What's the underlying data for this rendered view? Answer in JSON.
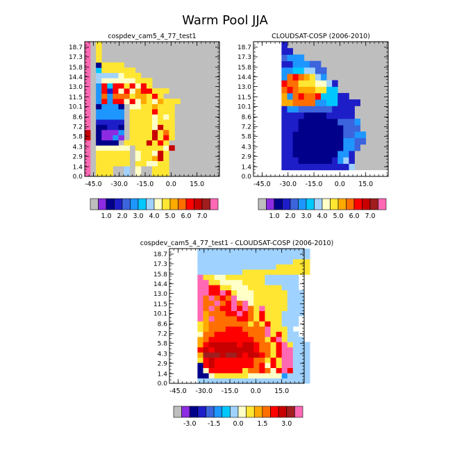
{
  "figure": {
    "title": "Warm Pool JJA"
  },
  "colors": {
    "abs": [
      "#bebebe",
      "#8c2be2",
      "#00008b",
      "#1e1ec8",
      "#3c64dc",
      "#1e96ff",
      "#00c8ff",
      "#a0d2ff",
      "#ffffc8",
      "#ffe632",
      "#ffaa00",
      "#ff6e00",
      "#ff0000",
      "#c80000",
      "#a01e1e",
      "#ff69b4"
    ],
    "diff": [
      "#bebebe",
      "#8c2be2",
      "#00008b",
      "#1e1ec8",
      "#3c64dc",
      "#1e96ff",
      "#00c8ff",
      "#a0d2ff",
      "#ffffc8",
      "#ffe632",
      "#ffaa00",
      "#ff6e00",
      "#ff0000",
      "#c80000",
      "#a01e1e",
      "#ff69b4"
    ]
  },
  "chart_data": [
    {
      "type": "heatmap",
      "title": "cospdev_cam5_4_77_test1",
      "xlabel": "",
      "ylabel": "",
      "xticks": [
        "-45.0",
        "-30.0",
        "-15.0",
        "0.0",
        "15.0"
      ],
      "yticks": [
        "0.0",
        "1.4",
        "2.9",
        "4.3",
        "5.8",
        "7.2",
        "8.6",
        "10.1",
        "11.5",
        "13.0",
        "14.4",
        "15.8",
        "17.3",
        "18.7"
      ],
      "colorbar_labels": [
        "1.0",
        "2.0",
        "3.0",
        "4.0",
        "5.0",
        "6.0",
        "7.0"
      ],
      "rows_bottom_to_top": [
        "f.999..7.8..999",
        "f.999..7.8..999",
        "f.999999.998899",
        "f.999999.899ad9",
        "f.999999.8998d9",
        "f.888888.999998d",
        "f.2222.9999d9c9",
        "d.21151.9999d9c9",
        "d.21115.9999d9b9",
        "f.22332.99998d99",
        "f.33333.99998999",
        "f.55555.99998989",
        "f.55555.9999c999",
        "f.25552.8899a999",
        "f.5c5cc8c8a98a999",
        "f.5b5bbb9aa9c9",
        "f.5c3c8c8acc999",
        "f.5c6cc9c8c9",
        "f.7888888999",
        "f.77778999",
        "f.6999999",
        "f.29999",
        "f.9",
        "f.9",
        "f.9",
        "f.9"
      ]
    },
    {
      "type": "heatmap",
      "title": "CLOUDSAT-COSP (2006-2010)",
      "xlabel": "",
      "ylabel": "",
      "xticks": [
        "-45.0",
        "-30.0",
        "-15.0",
        "0.0",
        "15.0"
      ],
      "yticks": [
        "0.0",
        "1.4",
        "2.9",
        "4.3",
        "5.8",
        "7.2",
        "8.6",
        "10.1",
        "11.5",
        "13.0",
        "14.4",
        "15.8",
        "17.3",
        "18.7"
      ],
      "colorbar_labels": [
        "1.0",
        "2.0",
        "3.0",
        "4.0",
        "5.0",
        "6.0",
        "7.0"
      ],
      "rows_bottom_to_top": [
        "",
        "3333333333337",
        "3332222223573",
        "3322222222553",
        "33222222222554",
        "332222222225544",
        "332222222224455",
        "33322222222444",
        "33322222224445",
        "3333222233333",
        "3554444443333",
        "aabbbb55663333",
        "a5bcbbc66633",
        "bcbaaa9966",
        "cbb9998873",
        "5bcba975",
        "55667744",
        "3355544",
        "4555",
        "33",
        "3"
      ]
    },
    {
      "type": "heatmap",
      "title": "cospdev_cam5_4_77_test1 - CLOUDSAT-COSP (2006-2010)",
      "xlabel": "",
      "ylabel": "",
      "xticks": [
        "-45.0",
        "-30.0",
        "-15.0",
        "0.0",
        "15.0"
      ],
      "yticks": [
        "0.0",
        "1.4",
        "2.9",
        "4.3",
        "5.8",
        "7.2",
        "8.6",
        "10.1",
        "11.5",
        "13.0",
        "14.4",
        "15.8",
        "17.3",
        "18.7"
      ],
      "colorbar_labels": [
        "-3.0",
        "-1.5",
        "0.0",
        "1.5",
        "3.0"
      ],
      "rows_bottom_to_top": [
        "77777777777777777777",
        "22899999988888857777",
        "28cccccc9bbcb8cfc777",
        "2cdcccccccbc8c9ff777",
        "9cdcccccccbb9c9ff777",
        "aeeedeedcddcb9cff777",
        "cdcdddddddcbb9cff777",
        "acdddddcddcbb9cf9777",
        "abccccccccbb9cf9777",
        "8bbccccccbbbf9c977",
        "9abbbcccbbbbf9997",
        "9abbbbbbb9b9c99777",
        "fafbbbbccb9c999777",
        "fabbbccfcb9c9997777",
        "fbfbccfcfb9f9999777",
        "fbbfbcfbf8999999777",
        "fbfbcbf888999999777",
        "ffccfc9888999999777",
        "ffcc99888999999777",
        "ff9988889999777777",
        "f99889999999777777",
        "77777777999999999999",
        "77777777777777999999",
        "77777777777777777999",
        "77777777777777777777",
        "77777777777777777777"
      ]
    }
  ]
}
